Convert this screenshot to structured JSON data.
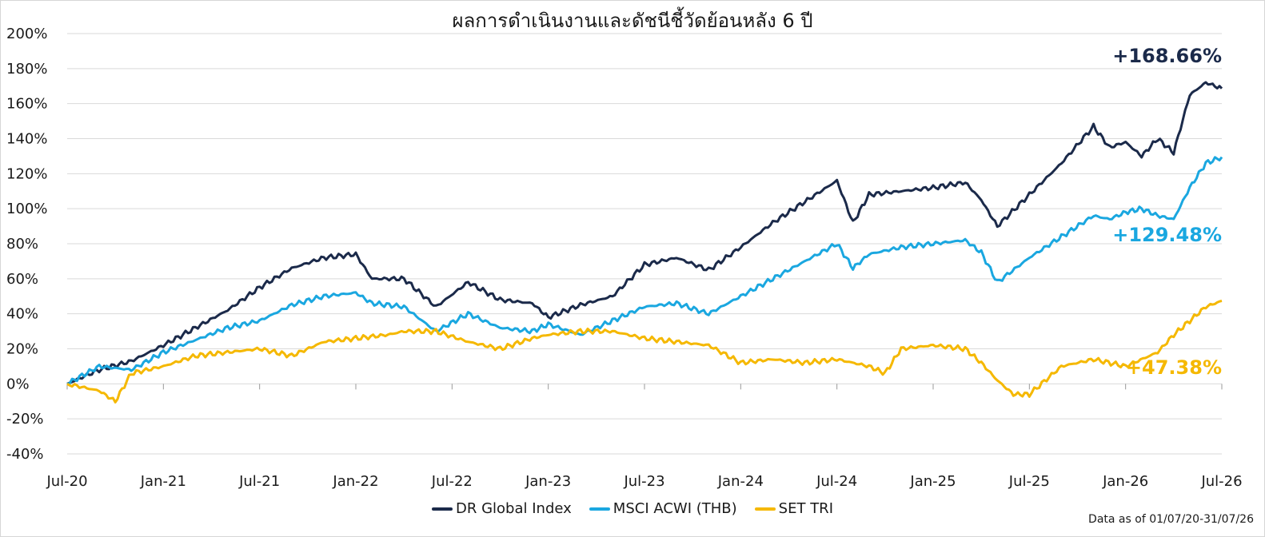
{
  "chart_data": {
    "type": "line",
    "title": "ผลการดำเนินงานและดัชนีชี้วัดย้อนหลัง 6 ปี",
    "ylim": [
      -40,
      200
    ],
    "yticks": [
      "200%",
      "180%",
      "160%",
      "140%",
      "120%",
      "100%",
      "80%",
      "60%",
      "40%",
      "20%",
      "0%",
      "-20%",
      "-40%"
    ],
    "ytick_values": [
      200,
      180,
      160,
      140,
      120,
      100,
      80,
      60,
      40,
      20,
      0,
      -20,
      -40
    ],
    "xticks": [
      "Jul-20",
      "Jan-21",
      "Jul-21",
      "Jan-22",
      "Jul-22",
      "Jan-23",
      "Jul-23",
      "Jan-24",
      "Jul-24",
      "Jan-25",
      "Jul-25",
      "Jan-26",
      "Jul-26"
    ],
    "grid": true,
    "legend_position": "bottom-center",
    "series": [
      {
        "name": "DR Global Index",
        "color": "#1b2a4a",
        "end_label": "+168.66%",
        "x": [
          "Jul-20",
          "Sep-20",
          "Nov-20",
          "Jan-21",
          "Mar-21",
          "May-21",
          "Jul-21",
          "Sep-21",
          "Nov-21",
          "Jan-22",
          "Feb-22",
          "Apr-22",
          "Jun-22",
          "Aug-22",
          "Oct-22",
          "Dec-22",
          "Jan-23",
          "Mar-23",
          "May-23",
          "Jul-23",
          "Sep-23",
          "Nov-23",
          "Jan-24",
          "Mar-24",
          "May-24",
          "Jul-24",
          "Aug-24",
          "Sep-24",
          "Nov-24",
          "Jan-25",
          "Mar-25",
          "Apr-25",
          "May-25",
          "Jul-25",
          "Sep-25",
          "Nov-25",
          "Dec-25",
          "Jan-26",
          "Feb-26",
          "Mar-26",
          "Apr-26",
          "May-26",
          "Jun-26",
          "Jul-26"
        ],
        "y": [
          0,
          8,
          13,
          22,
          32,
          42,
          55,
          66,
          72,
          74,
          60,
          60,
          44,
          58,
          48,
          46,
          38,
          45,
          50,
          68,
          72,
          65,
          78,
          92,
          104,
          116,
          92,
          108,
          110,
          112,
          115,
          105,
          90,
          108,
          126,
          147,
          135,
          138,
          130,
          140,
          132,
          165,
          172,
          168.66
        ]
      },
      {
        "name": "MSCI ACWI (THB)",
        "color": "#1aa7e0",
        "end_label": "+129.48%",
        "x": [
          "Jul-20",
          "Sep-20",
          "Nov-20",
          "Jan-21",
          "Mar-21",
          "May-21",
          "Jul-21",
          "Sep-21",
          "Nov-21",
          "Jan-22",
          "Feb-22",
          "Apr-22",
          "Jun-22",
          "Aug-22",
          "Oct-22",
          "Dec-22",
          "Jan-23",
          "Mar-23",
          "May-23",
          "Jul-23",
          "Sep-23",
          "Nov-23",
          "Jan-24",
          "Mar-24",
          "May-24",
          "Jul-24",
          "Aug-24",
          "Sep-24",
          "Nov-24",
          "Jan-25",
          "Mar-25",
          "Apr-25",
          "May-25",
          "Jul-25",
          "Sep-25",
          "Nov-25",
          "Dec-25",
          "Jan-26",
          "Feb-26",
          "Mar-26",
          "Apr-26",
          "May-26",
          "Jun-26",
          "Jul-26"
        ],
        "y": [
          0,
          10,
          8,
          18,
          25,
          32,
          36,
          45,
          50,
          52,
          46,
          44,
          30,
          40,
          32,
          30,
          34,
          28,
          36,
          44,
          46,
          40,
          50,
          60,
          70,
          80,
          66,
          74,
          78,
          80,
          82,
          75,
          58,
          72,
          84,
          96,
          94,
          98,
          100,
          96,
          94,
          112,
          126,
          129.48
        ]
      },
      {
        "name": "SET TRI",
        "color": "#f5b800",
        "end_label": "+47.38%",
        "x": [
          "Jul-20",
          "Sep-20",
          "Oct-20",
          "Nov-20",
          "Jan-21",
          "Mar-21",
          "May-21",
          "Jul-21",
          "Sep-21",
          "Nov-21",
          "Jan-22",
          "Mar-22",
          "Apr-22",
          "Jun-22",
          "Aug-22",
          "Oct-22",
          "Dec-22",
          "Jan-23",
          "Mar-23",
          "May-23",
          "Jul-23",
          "Sep-23",
          "Nov-23",
          "Jan-24",
          "Mar-24",
          "May-24",
          "Jul-24",
          "Sep-24",
          "Oct-24",
          "Nov-24",
          "Jan-25",
          "Mar-25",
          "Apr-25",
          "May-25",
          "Jun-25",
          "Jul-25",
          "Sep-25",
          "Nov-25",
          "Jan-26",
          "Mar-26",
          "Apr-26",
          "May-26",
          "Jun-26",
          "Jul-26"
        ],
        "y": [
          0,
          -4,
          -10,
          6,
          10,
          16,
          18,
          20,
          16,
          24,
          26,
          28,
          30,
          30,
          24,
          20,
          26,
          28,
          30,
          30,
          26,
          24,
          22,
          12,
          14,
          12,
          14,
          10,
          6,
          20,
          22,
          20,
          12,
          2,
          -6,
          -6,
          10,
          14,
          10,
          18,
          28,
          36,
          44,
          47.38
        ]
      }
    ]
  },
  "footnote": "Data as of 01/07/20-31/07/26"
}
